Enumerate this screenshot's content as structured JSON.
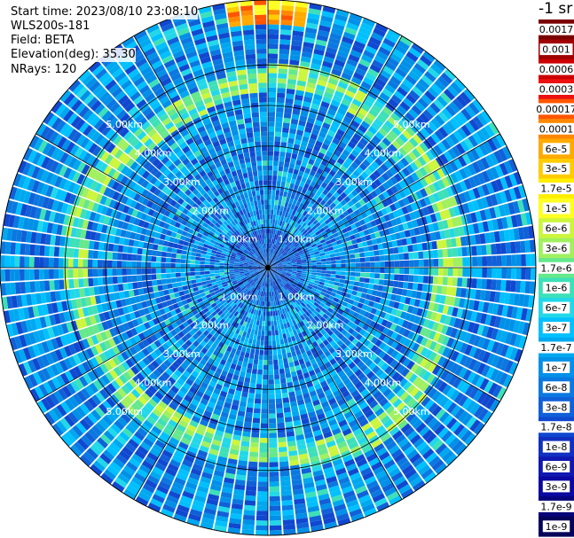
{
  "info": {
    "start_time": "Start time: 2023/08/10 23:08:10",
    "device": "WLS200s-181",
    "field": "Field: BETA",
    "elevation": "Elevation(deg): 35.30",
    "nrays": "NRays: 120"
  },
  "chart_data": {
    "type": "heatmap",
    "subtype": "polar-ppi",
    "field": "BETA",
    "elevation_deg": 35.3,
    "n_rays": 120,
    "range_rings_km": [
      1.0,
      2.0,
      3.0,
      4.0,
      5.0
    ],
    "ring_labels": [
      "1.00km",
      "2.00km",
      "3.00km",
      "4.00km",
      "5.00km"
    ],
    "max_range_km": 6.6,
    "unit_label": "-1 sr",
    "colorbar": {
      "labels": [
        "0.0017",
        "0.001",
        "0.0006",
        "0.0003",
        "0.00017",
        "0.0001",
        "6e-5",
        "3e-5",
        "1.7e-5",
        "1e-5",
        "6e-6",
        "3e-6",
        "1.7e-6",
        "1e-6",
        "6e-7",
        "3e-7",
        "1.7e-7",
        "1e-7",
        "6e-8",
        "3e-8",
        "1.7e-8",
        "1e-8",
        "6e-9",
        "3e-9",
        "1.7e-9",
        "1e-9"
      ],
      "colors": [
        "#7a0000",
        "#a00000",
        "#cc0000",
        "#ee1111",
        "#ff5500",
        "#ff8800",
        "#ffaa00",
        "#ffcc00",
        "#ffee00",
        "#ffff22",
        "#ccf53d",
        "#a0f060",
        "#66e88c",
        "#3de0b8",
        "#22d8e8",
        "#00c0ff",
        "#00a8f0",
        "#0090e8",
        "#0a78e0",
        "#1060d8",
        "#1048d0",
        "#1030c0",
        "#1018b0",
        "#0a08a0",
        "#06047a",
        "#04035a"
      ]
    },
    "structure": {
      "background_range_km": [
        0.0,
        6.6
      ],
      "background_value": "3e-7 to 6e-8 (cyan/blue speckle)",
      "enhanced_ring": {
        "range_km": [
          4.3,
          4.9
        ],
        "value": "3e-6 to 1e-6 (yellow-green)"
      },
      "near_field_km": [
        0.0,
        1.0
      ],
      "near_field_value": "1e-7 to 3e-8 (blue)",
      "strong_echo": {
        "azimuth_deg": [
          -12,
          8
        ],
        "range_km": [
          6.0,
          6.6
        ],
        "value": "3e-5 to 0.0001 (orange-red)"
      }
    }
  }
}
